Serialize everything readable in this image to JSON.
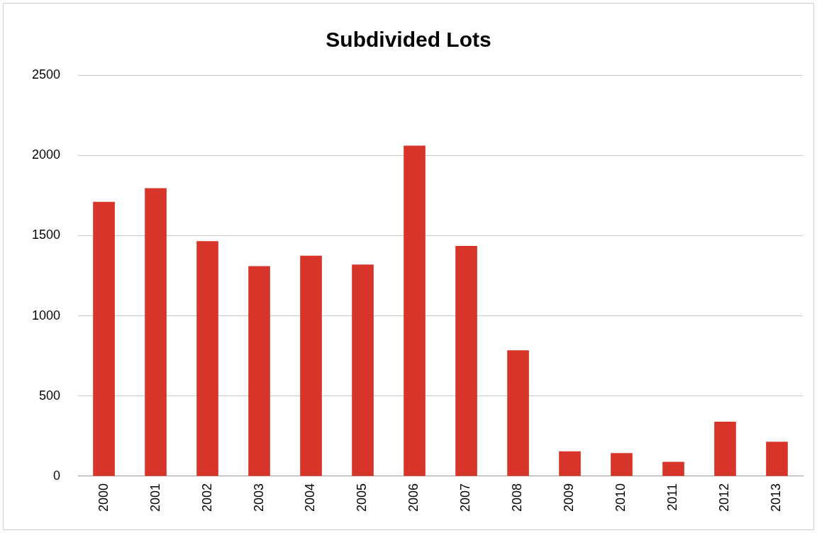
{
  "chart_data": {
    "type": "bar",
    "title": "Subdivided Lots",
    "categories": [
      "2000",
      "2001",
      "2002",
      "2003",
      "2004",
      "2005",
      "2006",
      "2007",
      "2008",
      "2009",
      "2010",
      "2011",
      "2012",
      "2013"
    ],
    "values": [
      1710,
      1795,
      1465,
      1310,
      1375,
      1320,
      2060,
      1435,
      785,
      155,
      145,
      90,
      340,
      215
    ],
    "color": "#d7352a",
    "ylim": [
      0,
      2500
    ],
    "yticks": [
      0,
      500,
      1000,
      1500,
      2000,
      2500
    ],
    "grid": "y"
  }
}
